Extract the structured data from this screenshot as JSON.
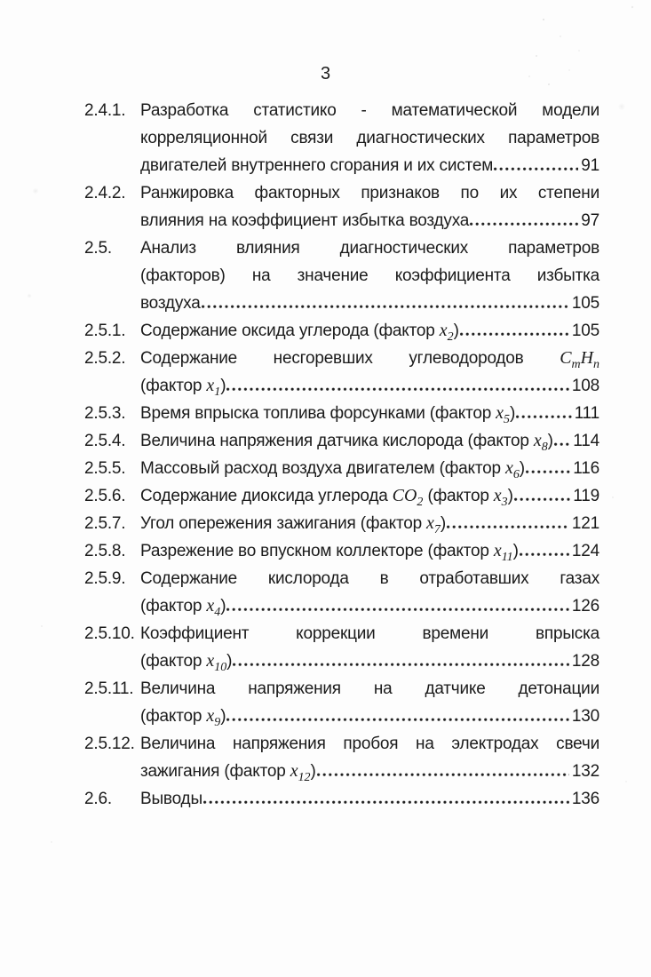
{
  "page": {
    "number": "3"
  },
  "toc": {
    "entries": [
      {
        "number": "2.4.1.",
        "lines": [
          "Разработка статистико - математической модели",
          "корреляционной связи диагностических параметров"
        ],
        "last": "двигателей внутреннего сгорания и их систем",
        "page": "91"
      },
      {
        "number": "2.4.2.",
        "lines": [
          "Ранжировка факторных признаков по их степени"
        ],
        "last": "влияния на коэффициент избытка воздуха",
        "page": "97"
      },
      {
        "number": "2.5.",
        "lines": [
          "Анализ влияния диагностических параметров",
          "(факторов) на значение коэффициента избытка"
        ],
        "last": "воздуха",
        "page": "105"
      },
      {
        "number": "2.5.1.",
        "lines": [],
        "last": "Содержание оксида углерода (фактор $x_2$)",
        "page": "105"
      },
      {
        "number": "2.5.2.",
        "lines": [
          "Содержание несгоревших углеводородов $C_mH_n$"
        ],
        "last": "(фактор $x_1$)",
        "page": "108"
      },
      {
        "number": "2.5.3.",
        "lines": [],
        "last": "Время впрыска топлива форсунками (фактор $x_5$)",
        "page": "111"
      },
      {
        "number": "2.5.4.",
        "lines": [],
        "last": "Величина напряжения датчика кислорода (фактор $x_8$)",
        "page": "114"
      },
      {
        "number": "2.5.5.",
        "lines": [],
        "last": "Массовый расход воздуха двигателем (фактор $x_6$)",
        "page": "116"
      },
      {
        "number": "2.5.6.",
        "lines": [],
        "last": "Содержание диоксида углерода $CO_2$ (фактор $x_3$)",
        "page": "119"
      },
      {
        "number": "2.5.7.",
        "lines": [],
        "last": "Угол опережения зажигания (фактор $x_7$)",
        "page": "121"
      },
      {
        "number": "2.5.8.",
        "lines": [],
        "last": "Разрежение во впускном коллекторе (фактор $x_{11}$)",
        "page": "124"
      },
      {
        "number": "2.5.9.",
        "lines": [
          "Содержание кислорода в отработавших газах"
        ],
        "last": "(фактор $x_4$)",
        "page": "126"
      },
      {
        "number": "2.5.10.",
        "lines": [
          "Коэффициент коррекции времени впрыска"
        ],
        "last": "(фактор $x_{10}$)",
        "page": "128"
      },
      {
        "number": "2.5.11.",
        "lines": [
          "Величина напряжения на датчике детонации"
        ],
        "last": "(фактор $x_9$)",
        "page": "130"
      },
      {
        "number": "2.5.12.",
        "lines": [
          "Величина напряжения пробоя на электродах свечи"
        ],
        "last": "зажигания (фактор $x_{12}$)",
        "page": "132"
      },
      {
        "number": "2.6.",
        "lines": [],
        "last": "Выводы",
        "page": "136"
      }
    ]
  }
}
